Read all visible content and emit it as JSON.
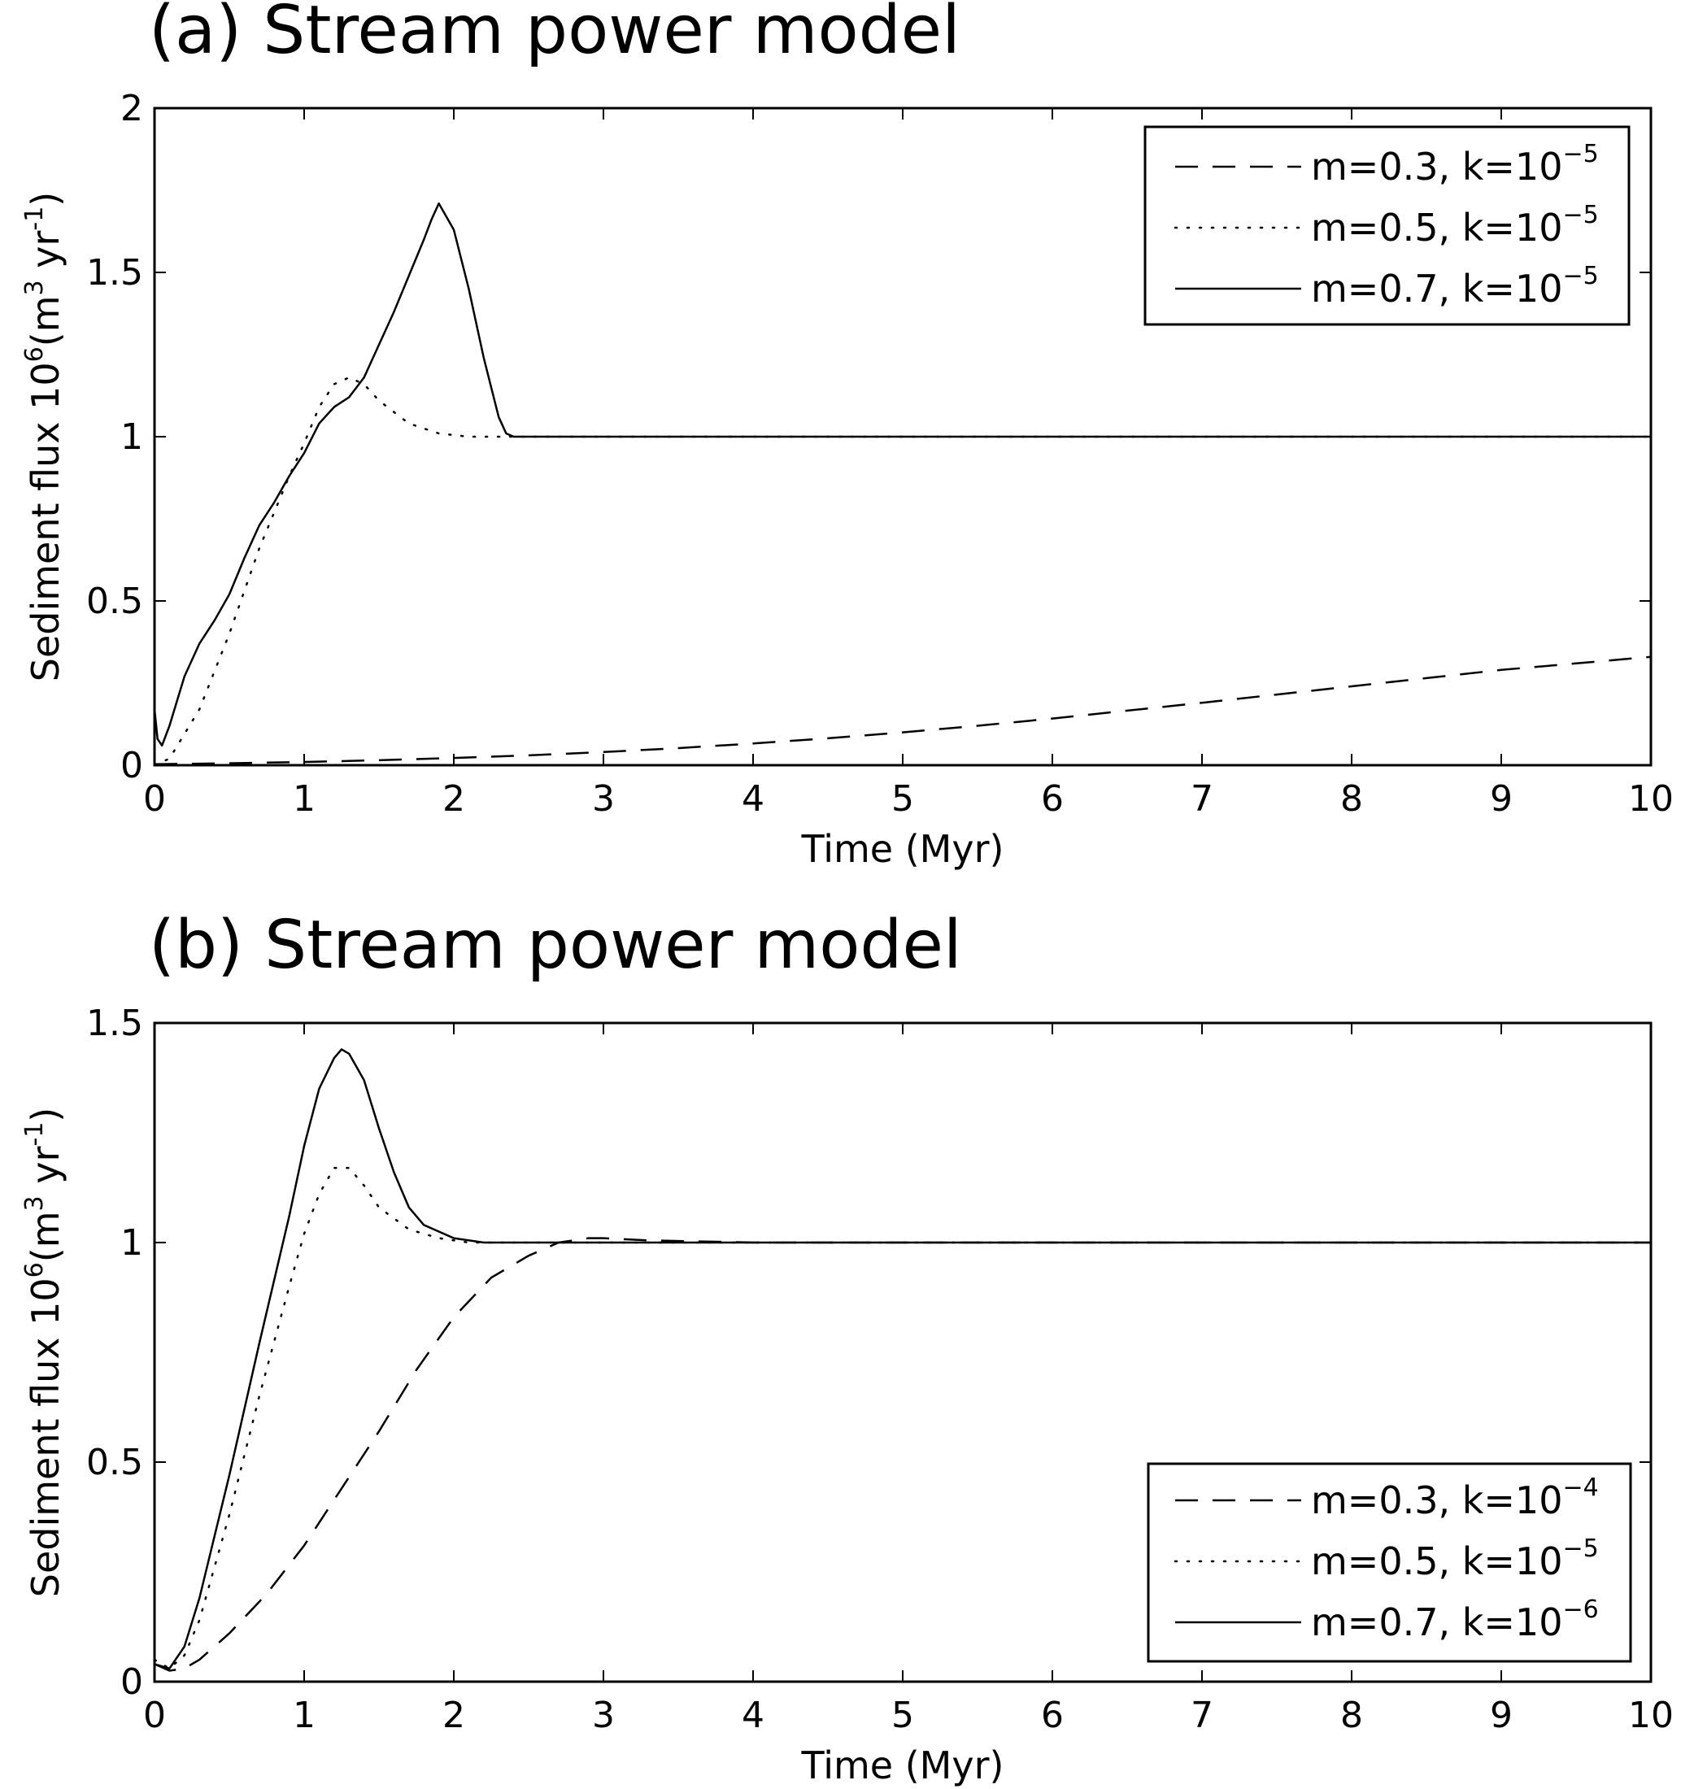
{
  "chart_data": [
    {
      "type": "line",
      "title": "(a) Stream power model",
      "xlabel": "Time (Myr)",
      "ylabel": "Sediment flux 10⁶(m³ yr⁻¹)",
      "ylabel_parts": {
        "pre": "Sediment flux 10",
        "exp1": "6",
        "mid": "(m",
        "exp2": "3",
        "mid2": " yr",
        "exp3": "-1",
        "post": ")"
      },
      "xlim": [
        0,
        10
      ],
      "ylim": [
        0,
        2
      ],
      "xticks": [
        0,
        1,
        2,
        3,
        4,
        5,
        6,
        7,
        8,
        9,
        10
      ],
      "xtick_labels": [
        "0",
        "1",
        "2",
        "3",
        "4",
        "5",
        "6",
        "7",
        "8",
        "9",
        "10"
      ],
      "yticks": [
        0,
        0.5,
        1,
        1.5,
        2
      ],
      "ytick_labels": [
        "0",
        "0.5",
        "1",
        "1.5",
        "2"
      ],
      "grid": false,
      "legend_position": "top-right",
      "series": [
        {
          "name": "m=0.3, k=10⁻⁵",
          "label": {
            "text": "m=0.3, k=10",
            "exp": "−5"
          },
          "style": "dashed",
          "x": [
            0,
            0.5,
            1,
            1.5,
            2,
            2.5,
            3,
            3.5,
            4,
            4.5,
            5,
            5.5,
            6,
            6.5,
            7,
            7.5,
            8,
            8.5,
            9,
            9.5,
            10
          ],
          "y": [
            0.003,
            0.006,
            0.01,
            0.015,
            0.022,
            0.03,
            0.04,
            0.052,
            0.066,
            0.082,
            0.1,
            0.12,
            0.142,
            0.166,
            0.19,
            0.215,
            0.24,
            0.265,
            0.29,
            0.31,
            0.33
          ]
        },
        {
          "name": "m=0.5, k=10⁻⁵",
          "label": {
            "text": "m=0.5, k=10",
            "exp": "−5"
          },
          "style": "dotted",
          "x": [
            0,
            0.1,
            0.3,
            0.5,
            0.7,
            0.9,
            1.0,
            1.1,
            1.2,
            1.3,
            1.4,
            1.5,
            1.7,
            1.9,
            2.1,
            2.3,
            2.5,
            3,
            4,
            5,
            6,
            7,
            8,
            9,
            10
          ],
          "y": [
            0.0,
            0.02,
            0.17,
            0.4,
            0.66,
            0.88,
            0.98,
            1.09,
            1.16,
            1.18,
            1.16,
            1.11,
            1.04,
            1.01,
            1.0,
            1.0,
            1.0,
            1.0,
            1.0,
            1.0,
            1.0,
            1.0,
            1.0,
            1.0,
            1.0
          ]
        },
        {
          "name": "m=0.7, k=10⁻⁵",
          "label": {
            "text": "m=0.7, k=10",
            "exp": "−5"
          },
          "style": "solid",
          "x": [
            0,
            0.02,
            0.05,
            0.1,
            0.2,
            0.3,
            0.4,
            0.5,
            0.6,
            0.7,
            0.8,
            0.9,
            1.0,
            1.1,
            1.2,
            1.3,
            1.4,
            1.5,
            1.6,
            1.7,
            1.8,
            1.85,
            1.9,
            2.0,
            2.1,
            2.2,
            2.3,
            2.35,
            2.4,
            2.5,
            3,
            4,
            5,
            6,
            7,
            8,
            9,
            10
          ],
          "y": [
            0.17,
            0.08,
            0.06,
            0.12,
            0.27,
            0.37,
            0.44,
            0.52,
            0.63,
            0.73,
            0.8,
            0.88,
            0.95,
            1.04,
            1.09,
            1.12,
            1.18,
            1.28,
            1.38,
            1.49,
            1.6,
            1.66,
            1.71,
            1.63,
            1.45,
            1.24,
            1.06,
            1.01,
            1.0,
            1.0,
            1.0,
            1.0,
            1.0,
            1.0,
            1.0,
            1.0,
            1.0,
            1.0
          ]
        }
      ]
    },
    {
      "type": "line",
      "title": "(b) Stream power model",
      "xlabel": "Time (Myr)",
      "ylabel": "Sediment flux 10⁶(m³ yr⁻¹)",
      "ylabel_parts": {
        "pre": "Sediment flux 10",
        "exp1": "6",
        "mid": "(m",
        "exp2": "3",
        "mid2": " yr",
        "exp3": "-1",
        "post": ")"
      },
      "xlim": [
        0,
        10
      ],
      "ylim": [
        0,
        1.5
      ],
      "xticks": [
        0,
        1,
        2,
        3,
        4,
        5,
        6,
        7,
        8,
        9,
        10
      ],
      "xtick_labels": [
        "0",
        "1",
        "2",
        "3",
        "4",
        "5",
        "6",
        "7",
        "8",
        "9",
        "10"
      ],
      "yticks": [
        0,
        0.5,
        1,
        1.5
      ],
      "ytick_labels": [
        "0",
        "0.5",
        "1",
        "1.5"
      ],
      "grid": false,
      "legend_position": "bottom-right",
      "series": [
        {
          "name": "m=0.3, k=10⁻⁴",
          "label": {
            "text": "m=0.3, k=10",
            "exp": "−4"
          },
          "style": "dashed",
          "x": [
            0,
            0.1,
            0.2,
            0.3,
            0.5,
            0.75,
            1.0,
            1.25,
            1.5,
            1.75,
            2.0,
            2.25,
            2.5,
            2.7,
            2.9,
            3.0,
            3.3,
            4,
            5,
            6,
            7,
            8,
            9,
            10
          ],
          "y": [
            0.04,
            0.025,
            0.03,
            0.05,
            0.11,
            0.2,
            0.31,
            0.44,
            0.57,
            0.71,
            0.83,
            0.92,
            0.97,
            1.0,
            1.01,
            1.01,
            1.005,
            1.0,
            1.0,
            1.0,
            1.0,
            1.0,
            1.0,
            1.0
          ]
        },
        {
          "name": "m=0.5, k=10⁻⁵",
          "label": {
            "text": "m=0.5, k=10",
            "exp": "−5"
          },
          "style": "dotted",
          "x": [
            0,
            0.1,
            0.2,
            0.3,
            0.5,
            0.7,
            0.9,
            1.0,
            1.1,
            1.2,
            1.3,
            1.4,
            1.5,
            1.7,
            1.9,
            2.1,
            2.3,
            2.6,
            3,
            4,
            5,
            6,
            7,
            8,
            9,
            10
          ],
          "y": [
            0.05,
            0.03,
            0.06,
            0.14,
            0.38,
            0.65,
            0.9,
            1.02,
            1.11,
            1.17,
            1.17,
            1.13,
            1.08,
            1.03,
            1.01,
            1.0,
            1.0,
            1.0,
            1.0,
            1.0,
            1.0,
            1.0,
            1.0,
            1.0,
            1.0,
            1.0
          ]
        },
        {
          "name": "m=0.7, k=10⁻⁶",
          "label": {
            "text": "m=0.7, k=10",
            "exp": "−6"
          },
          "style": "solid",
          "x": [
            0,
            0.1,
            0.2,
            0.3,
            0.5,
            0.7,
            0.9,
            1.0,
            1.1,
            1.2,
            1.25,
            1.3,
            1.4,
            1.5,
            1.6,
            1.7,
            1.8,
            2.0,
            2.2,
            2.5,
            3,
            4,
            5,
            6,
            7,
            8,
            9,
            10
          ],
          "y": [
            0.04,
            0.03,
            0.08,
            0.19,
            0.47,
            0.77,
            1.06,
            1.22,
            1.35,
            1.42,
            1.44,
            1.43,
            1.37,
            1.26,
            1.16,
            1.08,
            1.04,
            1.01,
            1.0,
            1.0,
            1.0,
            1.0,
            1.0,
            1.0,
            1.0,
            1.0,
            1.0,
            1.0
          ]
        }
      ]
    }
  ]
}
